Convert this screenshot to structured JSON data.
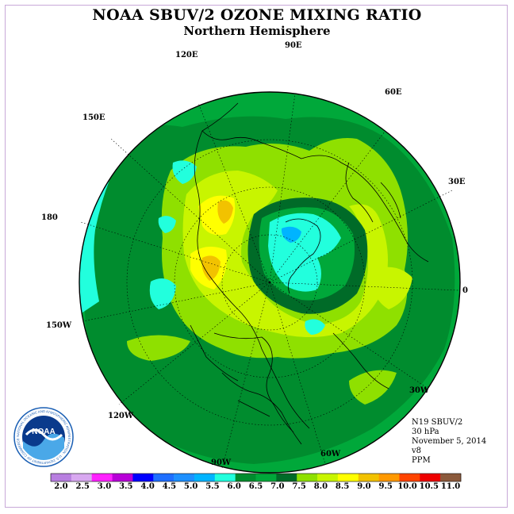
{
  "title": "NOAA SBUV/2 OZONE MIXING RATIO",
  "subtitle": "Northern Hemisphere",
  "longitude_labels": [
    "90E",
    "60E",
    "30E",
    "0",
    "30W",
    "60W",
    "90W",
    "120W",
    "150W",
    "180",
    "150E",
    "120E"
  ],
  "info": {
    "instrument": "N19 SBUV/2",
    "pressure": "30 hPa",
    "date": "November 5, 2014",
    "version": "v8",
    "units": "PPM"
  },
  "logo": {
    "text": "NOAA",
    "ring_text": "NATIONAL OCEANIC AND ATMOSPHERIC ADMINISTRATION · U.S. DEPARTMENT OF COMMERCE"
  },
  "colorbar": {
    "labels": [
      "2.0",
      "2.5",
      "3.0",
      "3.5",
      "4.0",
      "4.5",
      "5.0",
      "5.5",
      "6.0",
      "6.5",
      "7.0",
      "7.5",
      "8.0",
      "8.5",
      "9.0",
      "9.5",
      "10.0",
      "10.5",
      "11.0"
    ],
    "colors": [
      "#b87fe0",
      "#d8a8f0",
      "#ff22ff",
      "#b800d8",
      "#0000ff",
      "#1f6fff",
      "#1e90ff",
      "#00b4ff",
      "#22ffdd",
      "#008c2e",
      "#00a83a",
      "#006b28",
      "#8fe000",
      "#c8f500",
      "#ffff00",
      "#f2c200",
      "#ff9900",
      "#ff4400",
      "#ee0000",
      "#8b5a3c"
    ]
  }
}
